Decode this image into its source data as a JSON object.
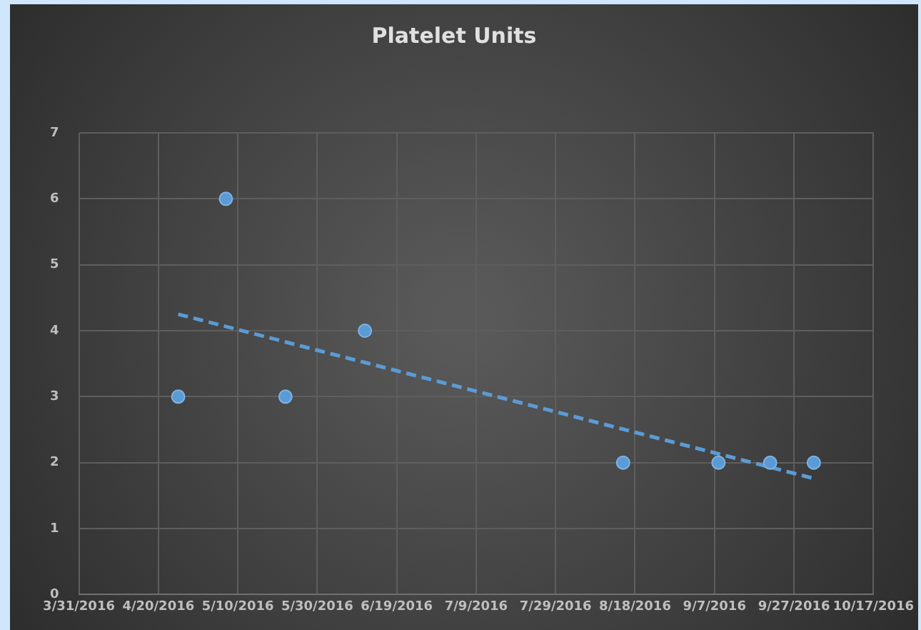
{
  "chart_data": {
    "type": "scatter",
    "title": "Platelet Units",
    "x": [
      "2016-04-25",
      "2016-05-07",
      "2016-05-22",
      "2016-06-11",
      "2016-08-15",
      "2016-09-08",
      "2016-09-21",
      "2016-10-02"
    ],
    "series": [
      {
        "type": "scatter",
        "color": "#5b9bd5",
        "marker": "circle",
        "values": [
          3,
          6,
          3,
          4,
          2,
          2,
          2,
          2
        ]
      },
      {
        "type": "line",
        "color": "#5b9bd5",
        "marker": "none",
        "line_style": "dashed",
        "x": [
          "2016-04-25",
          "2016-10-02"
        ],
        "values": [
          4.25,
          1.76
        ]
      }
    ],
    "xlim": [
      "2016-03-31",
      "2016-10-17"
    ],
    "xticks": [
      {
        "value": "2016-03-31",
        "label": "3/31/2016"
      },
      {
        "value": "2016-04-20",
        "label": "4/20/2016"
      },
      {
        "value": "2016-05-10",
        "label": "5/10/2016"
      },
      {
        "value": "2016-05-30",
        "label": "5/30/2016"
      },
      {
        "value": "2016-06-19",
        "label": "6/19/2016"
      },
      {
        "value": "2016-07-09",
        "label": "7/9/2016"
      },
      {
        "value": "2016-07-29",
        "label": "7/29/2016"
      },
      {
        "value": "2016-08-18",
        "label": "8/18/2016"
      },
      {
        "value": "2016-09-07",
        "label": "9/7/2016"
      },
      {
        "value": "2016-09-27",
        "label": "9/27/2016"
      },
      {
        "value": "2016-10-17",
        "label": "10/17/2016"
      }
    ],
    "ylim": [
      0,
      7
    ],
    "yticks": [
      0,
      1,
      2,
      3,
      4,
      5,
      6,
      7
    ],
    "grid": true,
    "legend": false
  }
}
